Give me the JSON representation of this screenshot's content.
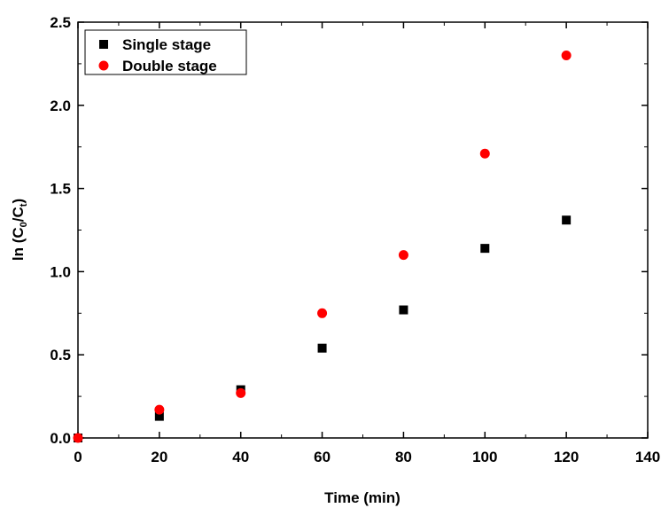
{
  "chart_data": {
    "type": "scatter",
    "xlabel": "Time (min)",
    "ylabel": {
      "prefix": "ln (C",
      "sub1": "0",
      "middle": "/C",
      "sub2": "t",
      "suffix": ")"
    },
    "xlim": [
      0,
      140
    ],
    "ylim": [
      0,
      2.5
    ],
    "xticks": [
      0,
      20,
      40,
      60,
      80,
      100,
      120,
      140
    ],
    "yticks": [
      "0.0",
      "0.5",
      "1.0",
      "1.5",
      "2.0",
      "2.5"
    ],
    "grid": false,
    "legend_position": "top-left",
    "series": [
      {
        "name": "Single stage",
        "marker": "square",
        "color": "#000000",
        "x": [
          0,
          20,
          40,
          60,
          80,
          100,
          120
        ],
        "y": [
          0.0,
          0.13,
          0.29,
          0.54,
          0.77,
          1.14,
          1.31
        ]
      },
      {
        "name": "Double stage",
        "marker": "circle",
        "color": "#ff0000",
        "x": [
          0,
          20,
          40,
          60,
          80,
          100,
          120
        ],
        "y": [
          0.0,
          0.17,
          0.27,
          0.75,
          1.1,
          1.71,
          2.3
        ]
      }
    ]
  }
}
